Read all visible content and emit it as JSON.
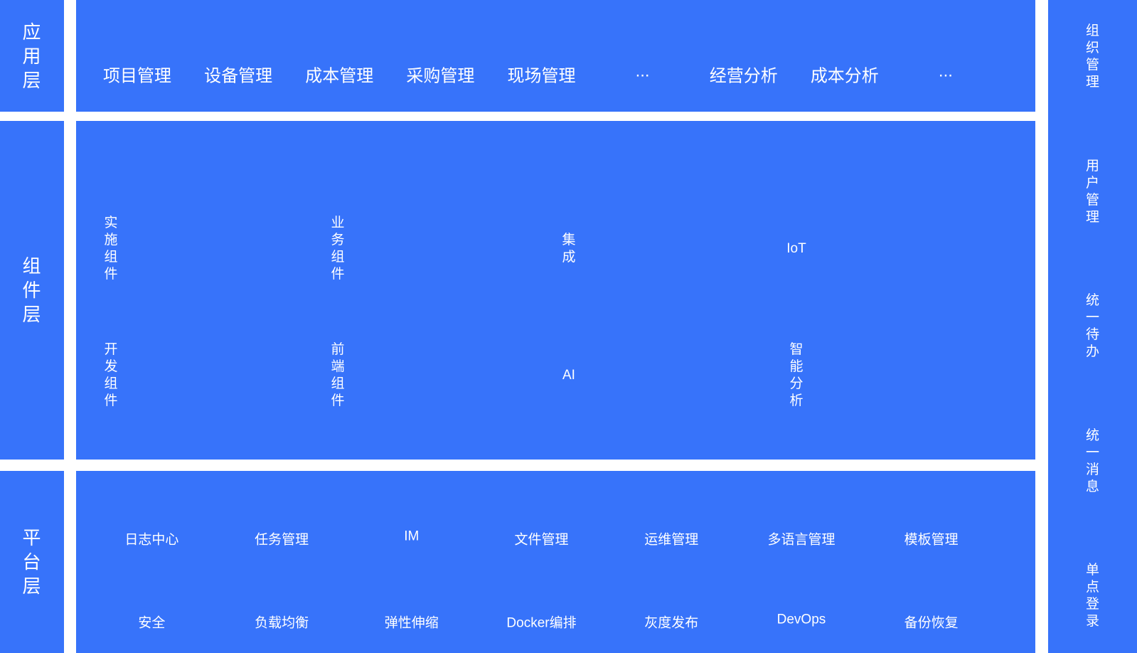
{
  "colors": {
    "block_blue": "#3773FA",
    "gutter_white": "#FFFFFF",
    "text_white": "#FFFFFF"
  },
  "layers": {
    "application": {
      "label": "应用层",
      "items": [
        "项目管理",
        "设备管理",
        "成本管理",
        "采购管理",
        "现场管理",
        "...",
        "经营分析",
        "成本分析",
        "..."
      ]
    },
    "component": {
      "label": "组件层",
      "row1": [
        "实施组件",
        "业务组件",
        "集成",
        "IoT"
      ],
      "row2": [
        "开发组件",
        "前端组件",
        "AI",
        "智能分析"
      ]
    },
    "platform": {
      "label": "平台层",
      "row1": [
        "日志中心",
        "任务管理",
        "IM",
        "文件管理",
        "运维管理",
        "多语言管理",
        "模板管理"
      ],
      "row2": [
        "安全",
        "负载均衡",
        "弹性伸缩",
        "Docker编排",
        "灰度发布",
        "DevOps",
        "备份恢复"
      ]
    }
  },
  "sidebar": {
    "items": [
      "组织管理",
      "用户管理",
      "统一待办",
      "统一消息",
      "单点登录"
    ]
  }
}
